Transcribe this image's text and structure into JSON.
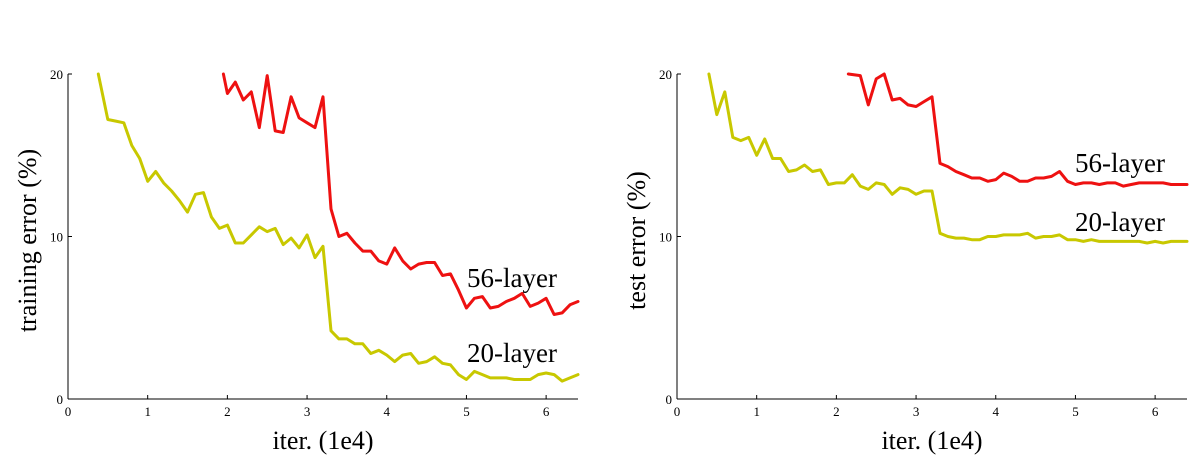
{
  "chart_data": [
    {
      "type": "line",
      "title": "",
      "xlabel": "iter. (1e4)",
      "ylabel": "training error (%)",
      "xlim": [
        0,
        6.4
      ],
      "ylim": [
        0,
        20
      ],
      "xticks": [
        "0",
        "1",
        "2",
        "3",
        "4",
        "5",
        "6"
      ],
      "yticks": [
        "0",
        "10",
        "20"
      ],
      "grid": false,
      "series": [
        {
          "name": "56-layer",
          "color": "#ee1111",
          "x": [
            1.95,
            2.0,
            2.1,
            2.2,
            2.3,
            2.4,
            2.5,
            2.6,
            2.7,
            2.8,
            2.9,
            3.0,
            3.1,
            3.2,
            3.3,
            3.4,
            3.5,
            3.6,
            3.7,
            3.8,
            3.9,
            4.0,
            4.1,
            4.2,
            4.3,
            4.4,
            4.5,
            4.6,
            4.7,
            4.8,
            4.9,
            5.0,
            5.1,
            5.2,
            5.3,
            5.4,
            5.5,
            5.6,
            5.7,
            5.8,
            5.9,
            6.0,
            6.1,
            6.2,
            6.3,
            6.4
          ],
          "y": [
            20.0,
            18.8,
            19.5,
            18.4,
            18.9,
            16.7,
            19.9,
            16.5,
            16.4,
            18.6,
            17.3,
            17.0,
            16.7,
            18.6,
            11.7,
            10.0,
            10.2,
            9.6,
            9.1,
            9.1,
            8.5,
            8.3,
            9.3,
            8.5,
            8.0,
            8.3,
            8.4,
            8.4,
            7.6,
            7.7,
            6.7,
            5.6,
            6.2,
            6.3,
            5.6,
            5.7,
            6.0,
            6.2,
            6.5,
            5.7,
            5.9,
            6.2,
            5.2,
            5.3,
            5.8,
            6.0
          ]
        },
        {
          "name": "20-layer",
          "color": "#c8c800",
          "x": [
            0.38,
            0.5,
            0.6,
            0.7,
            0.8,
            0.9,
            1.0,
            1.1,
            1.2,
            1.3,
            1.4,
            1.5,
            1.6,
            1.7,
            1.8,
            1.9,
            2.0,
            2.1,
            2.2,
            2.3,
            2.4,
            2.5,
            2.6,
            2.7,
            2.8,
            2.9,
            3.0,
            3.1,
            3.2,
            3.3,
            3.4,
            3.5,
            3.6,
            3.7,
            3.8,
            3.9,
            4.0,
            4.1,
            4.2,
            4.3,
            4.4,
            4.5,
            4.6,
            4.7,
            4.8,
            4.9,
            5.0,
            5.1,
            5.2,
            5.3,
            5.4,
            5.5,
            5.6,
            5.7,
            5.8,
            5.9,
            6.0,
            6.1,
            6.2,
            6.3,
            6.4
          ],
          "y": [
            20.0,
            17.2,
            17.1,
            17.0,
            15.6,
            14.8,
            13.4,
            14.0,
            13.3,
            12.8,
            12.2,
            11.5,
            12.6,
            12.7,
            11.2,
            10.5,
            10.7,
            9.6,
            9.6,
            10.1,
            10.6,
            10.3,
            10.5,
            9.5,
            9.9,
            9.3,
            10.1,
            8.7,
            9.4,
            4.2,
            3.7,
            3.7,
            3.4,
            3.4,
            2.8,
            3.0,
            2.7,
            2.3,
            2.7,
            2.8,
            2.2,
            2.3,
            2.6,
            2.2,
            2.1,
            1.5,
            1.2,
            1.7,
            1.5,
            1.3,
            1.3,
            1.3,
            1.2,
            1.2,
            1.2,
            1.5,
            1.6,
            1.5,
            1.1,
            1.3,
            1.5
          ]
        }
      ]
    },
    {
      "type": "line",
      "title": "",
      "xlabel": "iter. (1e4)",
      "ylabel": "test error (%)",
      "xlim": [
        0,
        6.4
      ],
      "ylim": [
        0,
        20
      ],
      "xticks": [
        "0",
        "1",
        "2",
        "3",
        "4",
        "5",
        "6"
      ],
      "yticks": [
        "0",
        "10",
        "20"
      ],
      "grid": false,
      "series": [
        {
          "name": "56-layer",
          "color": "#ee1111",
          "x": [
            2.15,
            2.3,
            2.4,
            2.5,
            2.6,
            2.7,
            2.8,
            2.9,
            3.0,
            3.1,
            3.2,
            3.3,
            3.4,
            3.5,
            3.6,
            3.7,
            3.8,
            3.9,
            4.0,
            4.1,
            4.2,
            4.3,
            4.4,
            4.5,
            4.6,
            4.7,
            4.8,
            4.9,
            5.0,
            5.1,
            5.2,
            5.3,
            5.4,
            5.5,
            5.6,
            5.7,
            5.8,
            5.9,
            6.0,
            6.1,
            6.2,
            6.3,
            6.4
          ],
          "y": [
            20.0,
            19.9,
            18.1,
            19.7,
            20.0,
            18.4,
            18.5,
            18.1,
            18.0,
            18.3,
            18.6,
            14.5,
            14.3,
            14.0,
            13.8,
            13.6,
            13.6,
            13.4,
            13.5,
            13.9,
            13.7,
            13.4,
            13.4,
            13.6,
            13.6,
            13.7,
            14.0,
            13.4,
            13.2,
            13.3,
            13.3,
            13.2,
            13.3,
            13.3,
            13.1,
            13.2,
            13.3,
            13.3,
            13.3,
            13.3,
            13.2,
            13.2,
            13.2
          ]
        },
        {
          "name": "20-layer",
          "color": "#c8c800",
          "x": [
            0.4,
            0.5,
            0.6,
            0.7,
            0.8,
            0.9,
            1.0,
            1.1,
            1.2,
            1.3,
            1.4,
            1.5,
            1.6,
            1.7,
            1.8,
            1.9,
            2.0,
            2.1,
            2.2,
            2.3,
            2.4,
            2.5,
            2.6,
            2.7,
            2.8,
            2.9,
            3.0,
            3.1,
            3.2,
            3.3,
            3.4,
            3.5,
            3.6,
            3.7,
            3.8,
            3.9,
            4.0,
            4.1,
            4.2,
            4.3,
            4.4,
            4.5,
            4.6,
            4.7,
            4.8,
            4.9,
            5.0,
            5.1,
            5.2,
            5.3,
            5.4,
            5.5,
            5.6,
            5.7,
            5.8,
            5.9,
            6.0,
            6.1,
            6.2,
            6.3,
            6.4
          ],
          "y": [
            20.0,
            17.5,
            18.9,
            16.1,
            15.9,
            16.1,
            15.0,
            16.0,
            14.8,
            14.8,
            14.0,
            14.1,
            14.4,
            14.0,
            14.1,
            13.2,
            13.3,
            13.3,
            13.8,
            13.1,
            12.9,
            13.3,
            13.2,
            12.6,
            13.0,
            12.9,
            12.6,
            12.8,
            12.8,
            10.2,
            10.0,
            9.9,
            9.9,
            9.8,
            9.8,
            10.0,
            10.0,
            10.1,
            10.1,
            10.1,
            10.2,
            9.9,
            10.0,
            10.0,
            10.1,
            9.8,
            9.8,
            9.7,
            9.8,
            9.7,
            9.7,
            9.7,
            9.7,
            9.7,
            9.7,
            9.6,
            9.7,
            9.6,
            9.7,
            9.7,
            9.7
          ]
        }
      ]
    }
  ]
}
